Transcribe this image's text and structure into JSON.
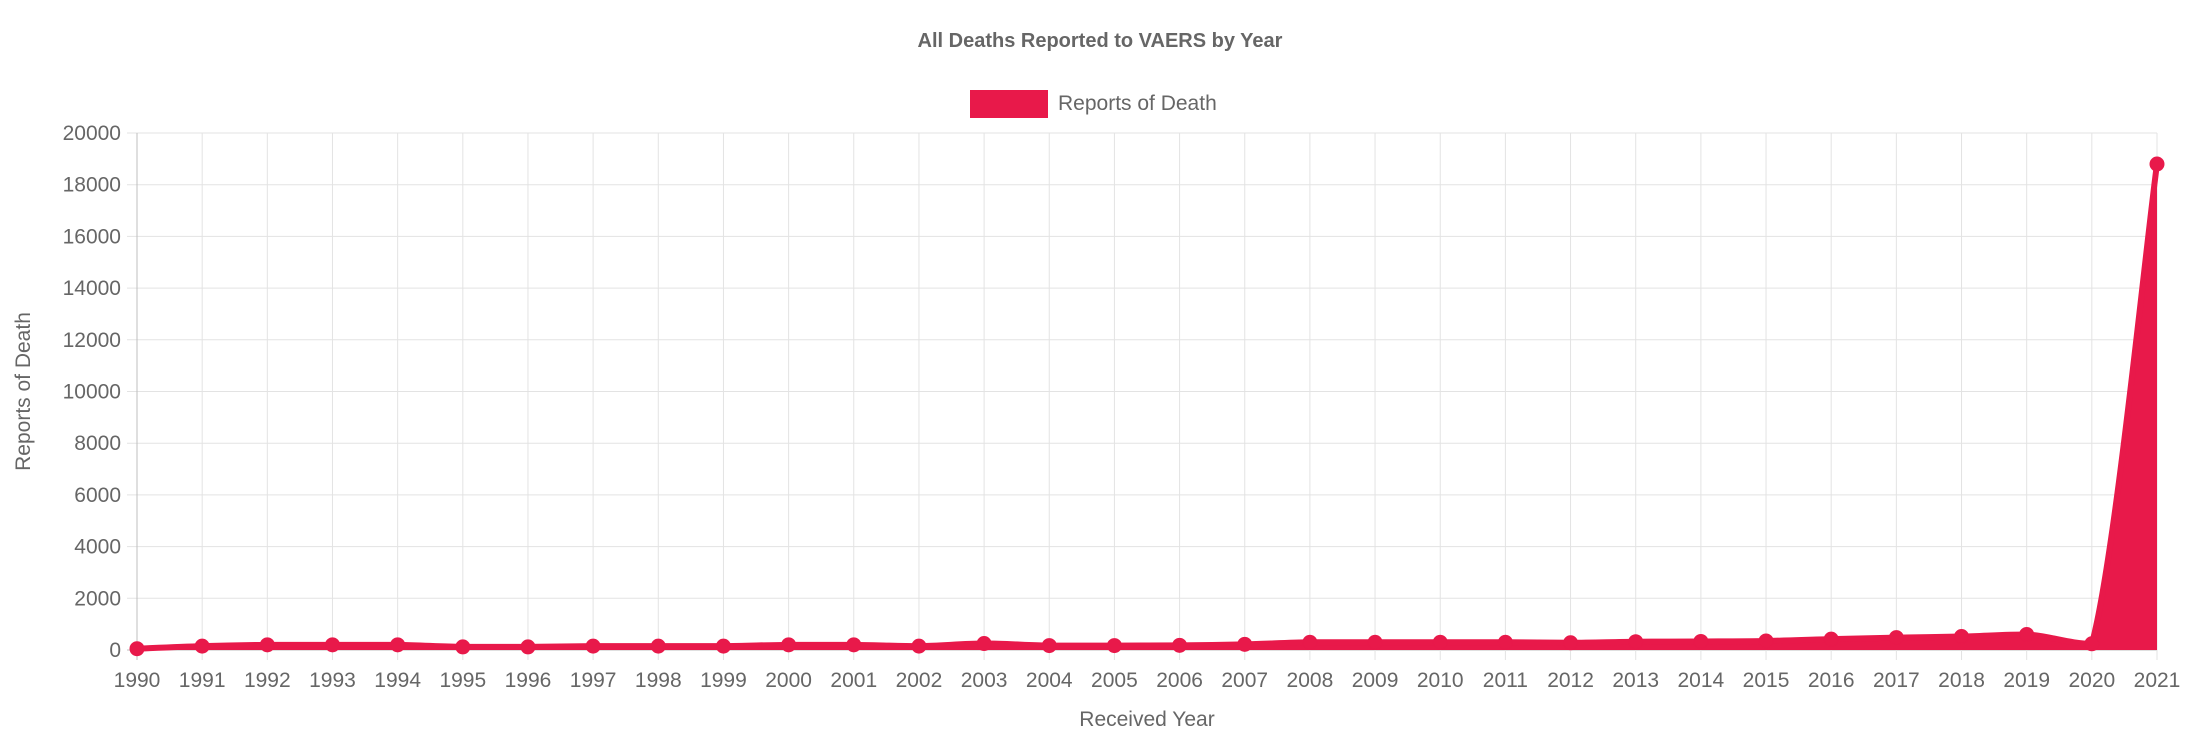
{
  "chart_data": {
    "type": "area",
    "title": "All Deaths Reported to VAERS by Year",
    "xlabel": "Received Year",
    "ylabel": "Reports of Death",
    "ylim": [
      0,
      20000
    ],
    "yticks": [
      0,
      2000,
      4000,
      6000,
      8000,
      10000,
      12000,
      14000,
      16000,
      18000,
      20000
    ],
    "grid": true,
    "legend_position": "top-center",
    "categories": [
      "1990",
      "1991",
      "1992",
      "1993",
      "1994",
      "1995",
      "1996",
      "1997",
      "1998",
      "1999",
      "2000",
      "2001",
      "2002",
      "2003",
      "2004",
      "2005",
      "2006",
      "2007",
      "2008",
      "2009",
      "2010",
      "2011",
      "2012",
      "2013",
      "2014",
      "2015",
      "2016",
      "2017",
      "2018",
      "2019",
      "2020",
      "2021"
    ],
    "series": [
      {
        "name": "Reports of Death",
        "color": "#e8194a",
        "values": [
          50,
          150,
          200,
          200,
          200,
          120,
          120,
          150,
          150,
          150,
          200,
          200,
          150,
          250,
          170,
          170,
          180,
          220,
          300,
          300,
          300,
          300,
          280,
          320,
          330,
          350,
          420,
          480,
          520,
          600,
          240,
          18800
        ]
      }
    ]
  }
}
